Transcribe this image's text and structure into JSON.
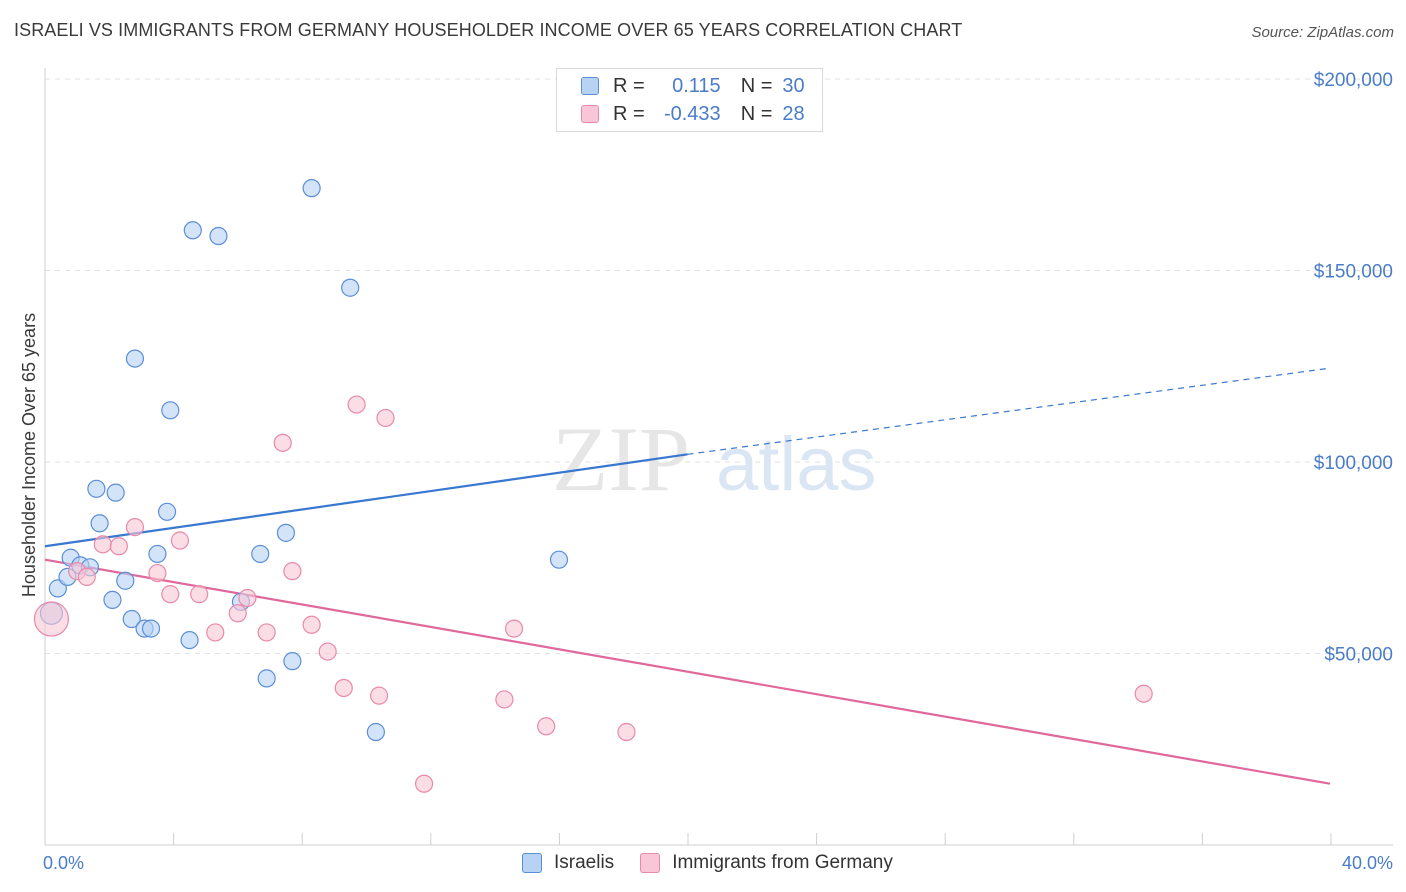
{
  "title": "ISRAELI VS IMMIGRANTS FROM GERMANY HOUSEHOLDER INCOME OVER 65 YEARS CORRELATION CHART",
  "source": "Source: ZipAtlas.com",
  "watermark": {
    "zip": "ZIP",
    "atlas": "atlas"
  },
  "legend": {
    "r_label": "R =",
    "n_label": "N =",
    "rows": [
      {
        "r": "0.115",
        "n": "30"
      },
      {
        "r": "-0.433",
        "n": "28"
      }
    ]
  },
  "bottom_legend": [
    "Israelis",
    "Immigrants from Germany"
  ],
  "colors": {
    "blue": "#3a78d0",
    "blue_fill": "#b8d2f3",
    "blue_edge": "#5a8fd8",
    "pink": "#e0689a",
    "pink_fill": "#f8c6d6",
    "pink_edge": "#e88aaa",
    "tick_text": "#4a7cc9"
  },
  "chart_data": {
    "type": "scatter",
    "title": "ISRAELI VS IMMIGRANTS FROM GERMANY HOUSEHOLDER INCOME OVER 65 YEARS CORRELATION CHART",
    "xlabel": "",
    "ylabel": "Householder Income Over 65 years",
    "xlim": [
      0,
      40
    ],
    "ylim": [
      0,
      200000
    ],
    "x_tick_labels": [
      "0.0%",
      "40.0%"
    ],
    "y_ticks": [
      50000,
      100000,
      150000,
      200000
    ],
    "y_tick_labels": [
      "$50,000",
      "$100,000",
      "$150,000",
      "$200,000"
    ],
    "grid": true,
    "series": [
      {
        "name": "Israelis",
        "color": "#5a8fd8",
        "trend": {
          "x": [
            0,
            20
          ],
          "y": [
            78000,
            102000
          ],
          "dashed_to": [
            40,
            124500
          ]
        },
        "points": [
          [
            0.2,
            60500
          ],
          [
            0.4,
            67000
          ],
          [
            0.7,
            70000
          ],
          [
            0.8,
            75000
          ],
          [
            1.1,
            73000
          ],
          [
            1.4,
            72500
          ],
          [
            1.6,
            93000
          ],
          [
            1.7,
            84000
          ],
          [
            2.1,
            64000
          ],
          [
            2.2,
            92000
          ],
          [
            2.5,
            69000
          ],
          [
            2.7,
            59000
          ],
          [
            2.8,
            127000
          ],
          [
            3.1,
            56500
          ],
          [
            3.3,
            56500
          ],
          [
            3.5,
            76000
          ],
          [
            3.8,
            87000
          ],
          [
            3.9,
            113500
          ],
          [
            4.5,
            53500
          ],
          [
            4.6,
            160500
          ],
          [
            5.4,
            159000
          ],
          [
            6.1,
            63500
          ],
          [
            6.7,
            76000
          ],
          [
            6.9,
            43500
          ],
          [
            7.5,
            81500
          ],
          [
            7.7,
            48000
          ],
          [
            8.3,
            171500
          ],
          [
            9.5,
            145500
          ],
          [
            10.3,
            29500
          ],
          [
            16.0,
            74500
          ]
        ]
      },
      {
        "name": "Immigrants from Germany",
        "color": "#e88aaa",
        "trend": {
          "x": [
            0,
            40
          ],
          "y": [
            74500,
            16000
          ]
        },
        "points": [
          [
            0.2,
            59000
          ],
          [
            1.0,
            71500
          ],
          [
            1.3,
            70000
          ],
          [
            1.8,
            78500
          ],
          [
            2.3,
            78000
          ],
          [
            2.8,
            83000
          ],
          [
            3.5,
            71000
          ],
          [
            3.9,
            65500
          ],
          [
            4.2,
            79500
          ],
          [
            4.8,
            65500
          ],
          [
            5.3,
            55500
          ],
          [
            6.0,
            60500
          ],
          [
            6.3,
            64500
          ],
          [
            6.9,
            55500
          ],
          [
            7.4,
            105000
          ],
          [
            7.7,
            71500
          ],
          [
            8.3,
            57500
          ],
          [
            8.8,
            50500
          ],
          [
            9.3,
            41000
          ],
          [
            9.7,
            115000
          ],
          [
            10.4,
            39000
          ],
          [
            10.6,
            111500
          ],
          [
            11.8,
            16000
          ],
          [
            14.3,
            38000
          ],
          [
            14.6,
            56500
          ],
          [
            15.6,
            31000
          ],
          [
            18.1,
            29500
          ],
          [
            34.2,
            39500
          ]
        ]
      }
    ]
  }
}
